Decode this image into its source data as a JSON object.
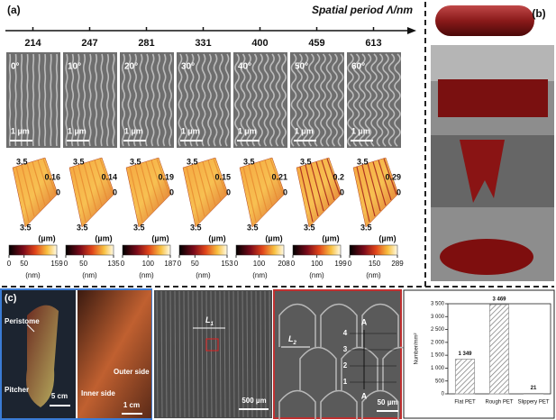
{
  "panel_a": {
    "label": "(a)",
    "axis_title": "Spatial period Λ/nm",
    "columns": [
      {
        "period": 214,
        "angle": "0°",
        "scale_bar": "1 µm",
        "range_top": 3.5,
        "range_bottom": 3.5,
        "z_max": 0.16,
        "z_min": 0,
        "z_unit": "(µm)",
        "colorbar_ticks": [
          0,
          50,
          159
        ],
        "colorbar_unit": "(nm)"
      },
      {
        "period": 247,
        "angle": "10°",
        "scale_bar": "1 µm",
        "range_top": 3.5,
        "range_bottom": 3.5,
        "z_max": 0.14,
        "z_min": 0,
        "z_unit": "(µm)",
        "colorbar_ticks": [
          0,
          50,
          135
        ],
        "colorbar_unit": "(nm)"
      },
      {
        "period": 281,
        "angle": "20°",
        "scale_bar": "1 µm",
        "range_top": 3.5,
        "range_bottom": 3.5,
        "z_max": 0.19,
        "z_min": 0,
        "z_unit": "(µm)",
        "colorbar_ticks": [
          0,
          100,
          187
        ],
        "colorbar_unit": "(nm)"
      },
      {
        "period": 331,
        "angle": "30°",
        "scale_bar": "1 µm",
        "range_top": 3.5,
        "range_bottom": 3.5,
        "z_max": 0.15,
        "z_min": 0,
        "z_unit": "(µm)",
        "colorbar_ticks": [
          0,
          50,
          153
        ],
        "colorbar_unit": "(nm)"
      },
      {
        "period": 400,
        "angle": "40°",
        "scale_bar": "1 µm",
        "range_top": 3.5,
        "range_bottom": 3.5,
        "z_max": 0.21,
        "z_min": 0,
        "z_unit": "(µm)",
        "colorbar_ticks": [
          0,
          100,
          208
        ],
        "colorbar_unit": "(nm)"
      },
      {
        "period": 459,
        "angle": "50°",
        "scale_bar": "1 µm",
        "range_top": 3.5,
        "range_bottom": 3.5,
        "z_max": 0.2,
        "z_min": 0,
        "z_unit": "(µm)",
        "colorbar_ticks": [
          0,
          100,
          199
        ],
        "colorbar_unit": "(nm)"
      },
      {
        "period": 613,
        "angle": "60°",
        "scale_bar": "1 µm",
        "range_top": 3.5,
        "range_bottom": 3.5,
        "z_max": 0.29,
        "z_min": 0,
        "z_unit": "(µm)",
        "colorbar_ticks": [
          0,
          150,
          289
        ],
        "colorbar_unit": "(nm)"
      }
    ]
  },
  "panel_b": {
    "label": "(b)"
  },
  "panel_c": {
    "label": "(c)",
    "photo_1": {
      "peristome": "Peristome",
      "pitcher": "Pitcher",
      "scale_bar": "5 cm"
    },
    "photo_2": {
      "outer": "Outer side",
      "inner": "Inner side",
      "scale_bar": "1 cm"
    },
    "sem_1": {
      "length": "L",
      "length_sub": "1",
      "scale_bar": "500 µm"
    },
    "sem_2": {
      "length": "L",
      "length_sub": "2",
      "levels": [
        4,
        3,
        2,
        1
      ],
      "section_top": "A",
      "section_bottom": "A",
      "scale_bar": "50 µm"
    }
  },
  "chart_data": {
    "type": "bar",
    "y_label": "Number/mm²",
    "categories": [
      "Flat PET",
      "Rough PET",
      "Slippery PET"
    ],
    "values": [
      1349,
      3469,
      21
    ],
    "value_labels": [
      "1 349",
      "3 469",
      "21"
    ],
    "color": "#9a9a9a",
    "ylim": [
      0,
      3500
    ],
    "yticks": [
      0,
      500,
      {
        "value": 1000,
        "label": "1 000"
      },
      {
        "value": 1500,
        "label": "1 500"
      },
      {
        "value": 2000,
        "label": "2 000"
      },
      {
        "value": 2500,
        "label": "2 500"
      },
      {
        "value": 3000,
        "label": "3 000"
      },
      {
        "value": 3500,
        "label": "3 500"
      }
    ]
  }
}
